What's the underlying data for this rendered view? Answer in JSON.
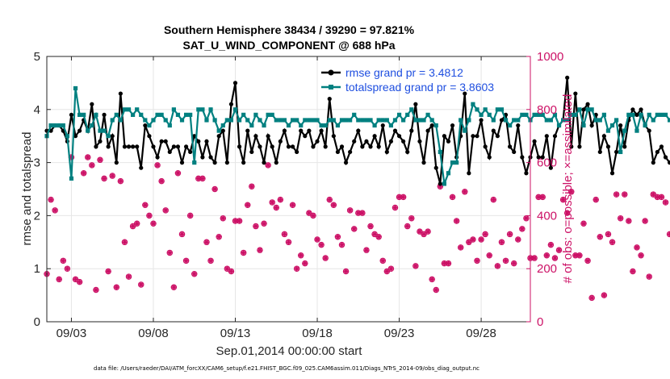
{
  "chart_data": {
    "type": "line",
    "title": "Southern Hemisphere 38434 / 39290 = 97.821%",
    "subtitle": "SAT_U_WIND_COMPONENT @ 688 hPa",
    "xlabel": "Sep.01,2014 00:00:00 start",
    "ylabel": "rmse and totalspread",
    "ylabel_right": "# of obs: o=possible; ×=assimilated",
    "footnote": "data file: /Users/raeder/DAI/ATM_forcXX/CAM6_setup/f.e21.FHIST_BGC.f09_025.CAM6assim.011/Diags_NTrS_2014-09/obs_diag_output.nc",
    "x_range_days": [
      1.5,
      31.0
    ],
    "ylim": [
      0,
      5
    ],
    "ylim_right": [
      0,
      1000
    ],
    "x_ticks": [
      3,
      8,
      13,
      18,
      23,
      28
    ],
    "x_tick_labels": [
      "09/03",
      "09/08",
      "09/13",
      "09/18",
      "09/23",
      "09/28"
    ],
    "y_ticks": [
      0,
      1,
      2,
      3,
      4,
      5
    ],
    "y_tick_labels": [
      "0",
      "1",
      "2",
      "3",
      "4",
      "5"
    ],
    "y_ticks_right": [
      0,
      200,
      400,
      600,
      800,
      1000
    ],
    "y_tick_labels_right": [
      "0",
      "200",
      "400",
      "600",
      "800",
      "1000"
    ],
    "grid": true,
    "legend_location": "top-right",
    "colors": {
      "rmse": "#000000",
      "spread": "#008080",
      "obs": "#cc1166"
    },
    "series": [
      {
        "name": "rmse grand pr = 3.4812",
        "axis": "left",
        "start_day": 1.5,
        "step_days": 0.25,
        "values": [
          3.6,
          3.6,
          3.7,
          3.7,
          3.6,
          3.4,
          3.9,
          3.5,
          3.6,
          3.8,
          3.6,
          4.1,
          3.3,
          3.4,
          3.9,
          3.3,
          3.5,
          3.0,
          4.3,
          3.3,
          3.3,
          3.3,
          3.3,
          2.9,
          3.7,
          3.5,
          3.3,
          3.1,
          3.4,
          3.4,
          3.2,
          3.3,
          3.3,
          3.0,
          3.3,
          3.2,
          3.5,
          3.4,
          3.1,
          3.4,
          3.1,
          3.0,
          3.5,
          3.6,
          3.0,
          4.1,
          4.5,
          3.3,
          3.0,
          3.6,
          3.2,
          3.5,
          3.3,
          3.0,
          3.5,
          3.3,
          3.0,
          3.4,
          3.6,
          3.3,
          3.3,
          3.2,
          3.6,
          3.5,
          3.6,
          3.3,
          3.4,
          3.6,
          3.3,
          4.2,
          3.5,
          3.2,
          3.3,
          3.0,
          3.2,
          3.4,
          3.6,
          3.3,
          3.4,
          3.3,
          3.5,
          3.3,
          3.7,
          3.2,
          3.4,
          3.6,
          3.5,
          3.4,
          3.2,
          3.6,
          4.1,
          3.4,
          3.0,
          3.6,
          3.7,
          2.9,
          2.6,
          3.5,
          3.4,
          3.7,
          3.1,
          3.5,
          4.3,
          2.8,
          3.5,
          3.5,
          3.8,
          3.3,
          3.1,
          3.6,
          3.5,
          3.8,
          3.9,
          3.3,
          3.2,
          3.7,
          3.1,
          2.8,
          3.1,
          3.4,
          3.1,
          3.1,
          3.5,
          2.9,
          3.5,
          3.7,
          3.8,
          4.6,
          3.3,
          4.3,
          3.3,
          4.0,
          4.1,
          3.7,
          3.9,
          3.2,
          3.5,
          3.3,
          2.8,
          3.2,
          3.7,
          3.3,
          3.8,
          4.0,
          3.9,
          4.0,
          3.7,
          3.6,
          3.0,
          3.2,
          3.3,
          3.1,
          3.0,
          3.0
        ]
      },
      {
        "name": "totalspread grand pr = 3.8603",
        "axis": "left",
        "start_day": 1.5,
        "step_days": 0.25,
        "values": [
          3.5,
          3.7,
          3.7,
          3.7,
          3.7,
          3.5,
          2.7,
          4.4,
          3.9,
          3.9,
          3.6,
          3.7,
          3.9,
          3.6,
          3.6,
          3.5,
          3.8,
          3.9,
          3.8,
          4.0,
          4.0,
          3.9,
          4.0,
          3.9,
          3.8,
          3.7,
          3.8,
          3.9,
          3.9,
          3.8,
          3.7,
          4.0,
          3.9,
          3.8,
          3.9,
          3.9,
          3.0,
          4.0,
          4.0,
          3.8,
          4.0,
          3.8,
          3.6,
          3.7,
          3.8,
          3.8,
          4.0,
          3.8,
          3.9,
          3.8,
          3.7,
          3.9,
          3.8,
          3.7,
          3.9,
          3.9,
          3.8,
          3.8,
          3.8,
          3.7,
          3.8,
          3.8,
          3.7,
          3.8,
          3.8,
          3.8,
          3.8,
          3.7,
          3.7,
          3.8,
          3.8,
          3.7,
          3.8,
          3.8,
          3.8,
          3.9,
          3.8,
          3.8,
          3.8,
          3.8,
          3.7,
          3.8,
          3.8,
          3.8,
          3.7,
          3.8,
          3.9,
          3.8,
          3.9,
          4.0,
          3.8,
          3.8,
          3.8,
          3.9,
          3.8,
          3.7,
          3.2,
          2.6,
          2.8,
          3.0,
          3.0,
          3.8,
          3.6,
          3.8,
          4.1,
          4.0,
          3.9,
          4.0,
          3.9,
          3.8,
          4.0,
          4.0,
          3.8,
          3.7,
          3.8,
          3.8,
          3.9,
          3.9,
          3.8,
          3.9,
          3.9,
          3.9,
          3.8,
          3.8,
          3.9,
          3.7,
          3.8,
          3.8,
          3.9,
          3.9,
          4.0,
          3.7,
          4.0,
          4.0,
          3.8,
          3.8,
          3.9,
          3.6,
          3.7,
          3.8,
          3.2,
          3.6,
          3.9,
          3.9,
          3.6,
          3.9,
          3.7,
          3.9,
          3.8,
          3.9,
          3.9,
          3.9,
          3.8,
          3.8,
          3.9,
          3.9
        ]
      },
      {
        "name": "obs_possible",
        "axis": "right",
        "marker": "o",
        "start_day": 1.5,
        "step_days": 0.25,
        "values": [
          180,
          460,
          420,
          160,
          230,
          200,
          620,
          160,
          150,
          560,
          620,
          590,
          120,
          610,
          540,
          190,
          550,
          130,
          530,
          300,
          170,
          360,
          370,
          140,
          440,
          400,
          370,
          590,
          530,
          420,
          260,
          130,
          560,
          330,
          230,
          400,
          180,
          540,
          540,
          300,
          230,
          500,
          320,
          390,
          200,
          190,
          380,
          380,
          260,
          440,
          510,
          360,
          270,
          370,
          590,
          450,
          430,
          460,
          330,
          300,
          440,
          200,
          250,
          220,
          410,
          400,
          310,
          290,
          240,
          460,
          440,
          320,
          290,
          190,
          420,
          350,
          410,
          410,
          270,
          360,
          330,
          320,
          230,
          190,
          200,
          430,
          470,
          470,
          360,
          390,
          210,
          340,
          330,
          340,
          160,
          120,
          510,
          220,
          220,
          470,
          380,
          280,
          490,
          300,
          310,
          230,
          310,
          330,
          250,
          460,
          210,
          300,
          230,
          330,
          220,
          310,
          350,
          390,
          240,
          240,
          470,
          470,
          250,
          290,
          240,
          270,
          460,
          410,
          490,
          250,
          250,
          370,
          230,
          90,
          460,
          320,
          100,
          330,
          300,
          480,
          390,
          480,
          380,
          190,
          280,
          250,
          380,
          170,
          480,
          470,
          470,
          450,
          330,
          400,
          190,
          470,
          460,
          440,
          440,
          0
        ]
      },
      {
        "name": "obs_assimilated",
        "axis": "right",
        "marker": "x",
        "start_day": 1.5,
        "step_days": 0.25,
        "values": [
          180,
          460,
          420,
          160,
          230,
          200,
          620,
          160,
          150,
          560,
          620,
          590,
          120,
          610,
          540,
          190,
          550,
          130,
          530,
          300,
          170,
          360,
          370,
          140,
          440,
          400,
          370,
          590,
          530,
          420,
          260,
          130,
          560,
          330,
          230,
          400,
          180,
          540,
          540,
          300,
          230,
          500,
          320,
          390,
          200,
          190,
          380,
          380,
          260,
          440,
          510,
          360,
          270,
          370,
          590,
          450,
          430,
          460,
          330,
          300,
          440,
          200,
          250,
          220,
          410,
          400,
          310,
          290,
          240,
          460,
          440,
          320,
          290,
          190,
          420,
          350,
          410,
          410,
          270,
          360,
          330,
          320,
          230,
          190,
          200,
          430,
          470,
          470,
          360,
          390,
          210,
          340,
          330,
          340,
          160,
          120,
          510,
          220,
          220,
          470,
          380,
          280,
          490,
          300,
          310,
          230,
          310,
          330,
          250,
          460,
          210,
          300,
          230,
          330,
          220,
          310,
          350,
          390,
          240,
          240,
          470,
          470,
          250,
          290,
          240,
          270,
          460,
          410,
          490,
          250,
          250,
          370,
          230,
          90,
          460,
          320,
          100,
          330,
          300,
          480,
          390,
          480,
          380,
          190,
          280,
          250,
          380,
          170,
          480,
          470,
          470,
          450,
          330,
          400,
          190,
          470,
          460,
          440,
          440,
          0
        ]
      }
    ]
  }
}
